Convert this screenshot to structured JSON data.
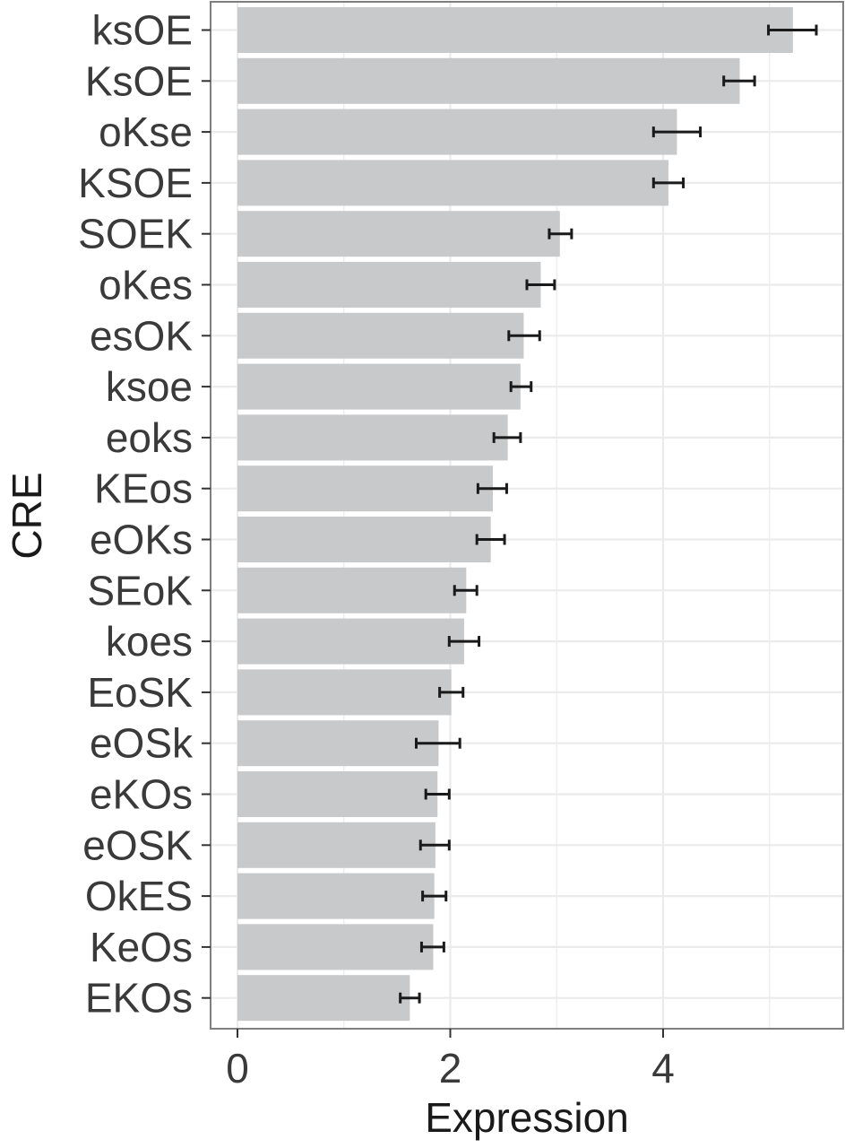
{
  "chart_data": {
    "type": "bar",
    "orientation": "horizontal",
    "title": "",
    "xlabel": "Expression",
    "ylabel": "CRE",
    "xlim": [
      -0.25,
      5.8
    ],
    "x_ticks": [
      0,
      2,
      4
    ],
    "grid": true,
    "legend": "none",
    "bar_color": "#c8c9cb",
    "panel_border_color": "#7f7f7f",
    "grid_color": "#ebebeb",
    "error_bar_color": "#1a1a1a",
    "categories": [
      "ksOE",
      "KsOE",
      "oKse",
      "KSOE",
      "SOEK",
      "oKes",
      "esOK",
      "ksoe",
      "eoks",
      "KEos",
      "eOKs",
      "SEoK",
      "koes",
      "EoSK",
      "eOSk",
      "eKOs",
      "eOSK",
      "OkES",
      "KeOs",
      "EKOs"
    ],
    "values": [
      5.22,
      4.72,
      4.13,
      4.05,
      3.03,
      2.85,
      2.69,
      2.66,
      2.54,
      2.4,
      2.38,
      2.15,
      2.13,
      2.01,
      1.89,
      1.88,
      1.86,
      1.85,
      1.84,
      1.62
    ],
    "err_low": [
      4.99,
      4.57,
      3.91,
      3.91,
      2.93,
      2.72,
      2.55,
      2.57,
      2.41,
      2.26,
      2.25,
      2.04,
      1.99,
      1.9,
      1.68,
      1.77,
      1.72,
      1.74,
      1.73,
      1.53
    ],
    "err_high": [
      5.44,
      4.86,
      4.35,
      4.19,
      3.14,
      2.98,
      2.84,
      2.76,
      2.66,
      2.53,
      2.51,
      2.25,
      2.27,
      2.12,
      2.09,
      1.99,
      1.99,
      1.96,
      1.94,
      1.71
    ]
  }
}
